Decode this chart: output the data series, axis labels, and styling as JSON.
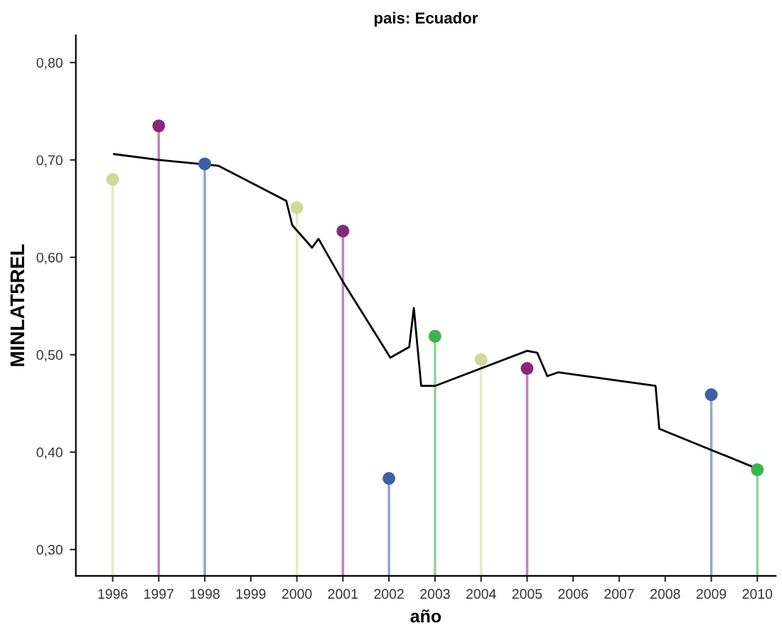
{
  "chart_data": {
    "type": "lollipop",
    "title": "pais: Ecuador",
    "xlabel": "año",
    "ylabel": "MINLAT5REL",
    "xlim": [
      1995.2,
      2010.4
    ],
    "ylim": [
      0.273,
      0.828
    ],
    "xticks": [
      1996,
      1997,
      1998,
      1999,
      2000,
      2001,
      2002,
      2003,
      2004,
      2005,
      2006,
      2007,
      2008,
      2009,
      2010
    ],
    "yticks": [
      {
        "value": 0.3,
        "label": "0,30"
      },
      {
        "value": 0.4,
        "label": "0,40"
      },
      {
        "value": 0.5,
        "label": "0,50"
      },
      {
        "value": 0.6,
        "label": "0,60"
      },
      {
        "value": 0.7,
        "label": "0,70"
      },
      {
        "value": 0.8,
        "label": "0,80"
      }
    ],
    "grid": false,
    "marker": "circle",
    "series": [
      {
        "color": "#d2d89a",
        "x": [
          1996,
          2000,
          2004
        ],
        "values": [
          0.68,
          0.651,
          0.495
        ]
      },
      {
        "color": "#86287a",
        "x": [
          1997,
          2001,
          2005
        ],
        "values": [
          0.735,
          0.627,
          0.486
        ]
      },
      {
        "color": "#3e5fa8",
        "x": [
          1998,
          2002,
          2009
        ],
        "values": [
          0.696,
          0.373,
          0.459
        ]
      },
      {
        "color": "#3bb54a",
        "x": [
          2003,
          2010
        ],
        "values": [
          0.519,
          0.382
        ]
      },
      {
        "type": "line",
        "color": "#000000",
        "marker": "none",
        "x": [
          1996.03,
          1997.0,
          1998.3,
          1999.77,
          1999.9,
          2000.33,
          2000.47,
          2001.0,
          2002.03,
          2002.44,
          2002.54,
          2002.7,
          2003.0,
          2005.0,
          2005.22,
          2005.44,
          2005.68,
          2007.79,
          2007.87,
          2010.0
        ],
        "values": [
          0.706,
          0.7,
          0.694,
          0.658,
          0.633,
          0.61,
          0.619,
          0.575,
          0.497,
          0.508,
          0.548,
          0.468,
          0.468,
          0.504,
          0.502,
          0.478,
          0.482,
          0.468,
          0.424,
          0.383
        ]
      }
    ]
  }
}
